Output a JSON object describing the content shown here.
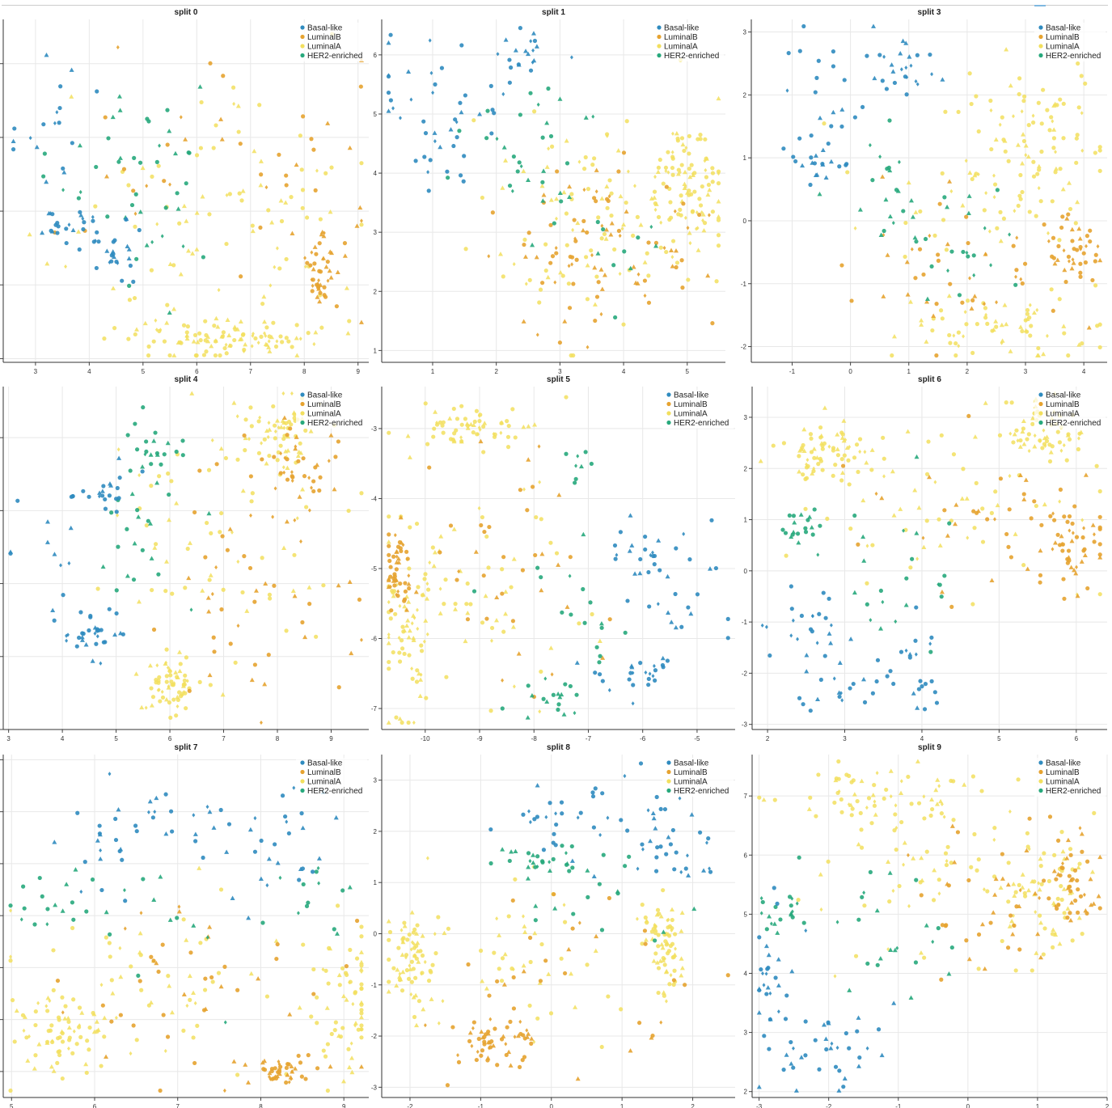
{
  "legend_entries": [
    "Basal-like",
    "LuminalB",
    "LuminalA",
    "HER2-enriched"
  ],
  "colors": {
    "Basal-like": "#2f8bbf",
    "LuminalB": "#e6a330",
    "LuminalA": "#f2df5e",
    "HER2-enriched": "#27a97c"
  },
  "chart_data": [
    {
      "type": "scatter",
      "title": "split 0",
      "xlim": [
        2.4,
        9.2
      ],
      "ylim": [
        0.95,
        5.6
      ],
      "xticks": [
        3,
        4,
        5,
        6,
        7,
        8,
        9
      ],
      "yticks": [
        1,
        2,
        3,
        4,
        5
      ],
      "legend": "top-right",
      "clusters": {
        "Basal-like": [
          [
            3.3,
            4.2
          ],
          [
            0.5,
            0.45
          ],
          [
            3.5,
            2.85
          ],
          [
            0.25,
            0.1
          ],
          [
            4.4,
            2.5
          ],
          [
            0.3,
            0.25
          ]
        ],
        "HER2-enriched": [
          [
            4.5,
            3.7
          ],
          [
            0.6,
            0.6
          ],
          [
            5.3,
            3.2
          ],
          [
            0.7,
            0.9
          ]
        ],
        "LuminalA": [
          [
            6.3,
            2.8
          ],
          [
            1.5,
            0.9
          ],
          [
            6.6,
            1.3
          ],
          [
            0.8,
            0.12
          ]
        ],
        "LuminalB": [
          [
            6.8,
            3.5
          ],
          [
            1.5,
            0.9
          ],
          [
            8.3,
            2.1
          ],
          [
            0.15,
            0.3
          ]
        ]
      }
    },
    {
      "type": "scatter",
      "title": "split 1",
      "xlim": [
        0.2,
        5.6
      ],
      "ylim": [
        0.8,
        6.6
      ],
      "xticks": [
        1,
        2,
        3,
        4,
        5
      ],
      "yticks": [
        1,
        2,
        3,
        4,
        5,
        6
      ],
      "legend": "top-right",
      "clusters": {
        "Basal-like": [
          [
            1.0,
            5.4
          ],
          [
            0.6,
            0.4
          ],
          [
            1.3,
            4.3
          ],
          [
            0.3,
            0.3
          ],
          [
            2.3,
            6.1
          ],
          [
            0.3,
            0.2
          ]
        ],
        "HER2-enriched": [
          [
            2.5,
            4.4
          ],
          [
            0.7,
            0.6
          ],
          [
            3.3,
            3.0
          ],
          [
            0.6,
            0.5
          ]
        ],
        "LuminalA": [
          [
            3.8,
            3.2
          ],
          [
            1.0,
            0.9
          ],
          [
            5.0,
            3.8
          ],
          [
            0.3,
            0.6
          ]
        ],
        "LuminalB": [
          [
            3.4,
            2.4
          ],
          [
            0.9,
            0.7
          ],
          [
            4.0,
            3.0
          ],
          [
            0.8,
            0.6
          ]
        ]
      }
    },
    {
      "type": "scatter",
      "title": "split 3",
      "xlim": [
        -1.7,
        4.4
      ],
      "ylim": [
        -2.25,
        3.2
      ],
      "xticks": [
        -1,
        0,
        1,
        2,
        3,
        4
      ],
      "yticks": [
        -2,
        -1,
        0,
        1,
        2,
        3
      ],
      "legend": "top-right",
      "clusters": {
        "Basal-like": [
          [
            -0.5,
            2.1
          ],
          [
            0.5,
            0.4
          ],
          [
            -0.6,
            0.9
          ],
          [
            0.3,
            0.2
          ],
          [
            0.8,
            2.4
          ],
          [
            0.3,
            0.3
          ]
        ],
        "HER2-enriched": [
          [
            0.7,
            0.4
          ],
          [
            0.6,
            0.6
          ],
          [
            1.5,
            -0.5
          ],
          [
            0.6,
            0.5
          ]
        ],
        "LuminalA": [
          [
            2.5,
            0.5
          ],
          [
            1.0,
            0.9
          ],
          [
            3.2,
            1.5
          ],
          [
            0.5,
            0.5
          ],
          [
            2.5,
            -1.7
          ],
          [
            0.9,
            0.25
          ]
        ],
        "LuminalB": [
          [
            2.0,
            -0.6
          ],
          [
            1.1,
            0.5
          ],
          [
            3.8,
            -0.5
          ],
          [
            0.3,
            0.3
          ]
        ]
      }
    },
    {
      "type": "scatter",
      "title": "split 4",
      "xlim": [
        2.9,
        9.7
      ],
      "ylim": [
        4.0,
        8.7
      ],
      "xticks": [
        3,
        4,
        5,
        6,
        7,
        8,
        9
      ],
      "yticks": [
        4,
        5,
        6,
        7,
        8
      ],
      "legend": "top-right",
      "clusters": {
        "Basal-like": [
          [
            3.8,
            6.4
          ],
          [
            0.5,
            0.5
          ],
          [
            4.7,
            7.3
          ],
          [
            0.3,
            0.15
          ],
          [
            4.6,
            5.3
          ],
          [
            0.3,
            0.2
          ]
        ],
        "HER2-enriched": [
          [
            5.5,
            6.6
          ],
          [
            0.5,
            0.6
          ],
          [
            5.7,
            7.8
          ],
          [
            0.2,
            0.2
          ]
        ],
        "LuminalA": [
          [
            6.9,
            6.8
          ],
          [
            1.2,
            0.9
          ],
          [
            6.0,
            4.6
          ],
          [
            0.3,
            0.2
          ],
          [
            8.0,
            8.0
          ],
          [
            0.4,
            0.3
          ]
        ],
        "LuminalB": [
          [
            7.6,
            6.0
          ],
          [
            1.0,
            0.9
          ],
          [
            8.4,
            7.6
          ],
          [
            0.3,
            0.3
          ]
        ]
      }
    },
    {
      "type": "scatter",
      "title": "split 5",
      "xlim": [
        -10.8,
        -4.3
      ],
      "ylim": [
        -7.3,
        -2.4
      ],
      "xticks": [
        -10,
        -9,
        -8,
        -7,
        -6,
        -5
      ],
      "yticks": [
        -7,
        -6,
        -5,
        -4,
        -3
      ],
      "legend": "top-right",
      "clusters": {
        "Basal-like": [
          [
            -5.3,
            -5.6
          ],
          [
            0.4,
            0.4
          ],
          [
            -6.0,
            -6.5
          ],
          [
            0.5,
            0.15
          ],
          [
            -6.0,
            -4.8
          ],
          [
            0.3,
            0.2
          ]
        ],
        "HER2-enriched": [
          [
            -7.3,
            -5.5
          ],
          [
            0.6,
            0.5
          ],
          [
            -7.2,
            -3.5
          ],
          [
            0.2,
            0.15
          ],
          [
            -7.8,
            -6.9
          ],
          [
            0.3,
            0.15
          ]
        ],
        "LuminalA": [
          [
            -9.0,
            -5.0
          ],
          [
            1.1,
            1.0
          ],
          [
            -10.3,
            -5.8
          ],
          [
            0.25,
            0.7
          ],
          [
            -9.0,
            -3.0
          ],
          [
            0.5,
            0.15
          ]
        ],
        "LuminalB": [
          [
            -8.3,
            -4.8
          ],
          [
            0.9,
            0.8
          ],
          [
            -10.5,
            -5.0
          ],
          [
            0.15,
            0.3
          ]
        ]
      }
    },
    {
      "type": "scatter",
      "title": "split 6",
      "xlim": [
        1.8,
        6.4
      ],
      "ylim": [
        -3.1,
        3.6
      ],
      "xticks": [
        2,
        3,
        4,
        5,
        6
      ],
      "yticks": [
        -3,
        -2,
        -1,
        0,
        1,
        2,
        3
      ],
      "legend": "top-right",
      "clusters": {
        "Basal-like": [
          [
            3.0,
            -2.2
          ],
          [
            0.4,
            0.35
          ],
          [
            3.9,
            -1.9
          ],
          [
            0.2,
            0.4
          ],
          [
            2.5,
            -1.0
          ],
          [
            0.3,
            0.4
          ]
        ],
        "HER2-enriched": [
          [
            3.6,
            -0.1
          ],
          [
            0.5,
            0.7
          ],
          [
            2.4,
            0.8
          ],
          [
            0.15,
            0.3
          ]
        ],
        "LuminalA": [
          [
            4.4,
            1.3
          ],
          [
            1.0,
            0.8
          ],
          [
            2.7,
            2.3
          ],
          [
            0.3,
            0.3
          ],
          [
            5.6,
            2.8
          ],
          [
            0.3,
            0.3
          ]
        ],
        "LuminalB": [
          [
            5.0,
            0.8
          ],
          [
            0.8,
            0.8
          ],
          [
            5.9,
            0.5
          ],
          [
            0.2,
            0.5
          ]
        ]
      }
    },
    {
      "type": "scatter",
      "title": "split 7",
      "xlim": [
        4.9,
        9.3
      ],
      "ylim": [
        6.5,
        -0.1
      ],
      "xticks": [
        5,
        6,
        7,
        8,
        9
      ],
      "yticks": [
        0,
        1,
        2,
        3,
        4,
        5,
        6
      ],
      "legend": "top-right",
      "clusters": {
        "Basal-like": [
          [
            7.0,
            1.1
          ],
          [
            0.7,
            0.3
          ],
          [
            8.1,
            1.6
          ],
          [
            0.3,
            0.5
          ],
          [
            6.2,
            1.7
          ],
          [
            0.2,
            0.4
          ]
        ],
        "HER2-enriched": [
          [
            7.0,
            3.0
          ],
          [
            0.8,
            0.7
          ],
          [
            5.5,
            2.7
          ],
          [
            0.3,
            0.3
          ],
          [
            8.7,
            2.8
          ],
          [
            0.2,
            0.3
          ]
        ],
        "LuminalA": [
          [
            7.2,
            4.3
          ],
          [
            1.2,
            0.9
          ],
          [
            9.0,
            4.8
          ],
          [
            0.2,
            0.6
          ],
          [
            5.6,
            5.3
          ],
          [
            0.3,
            0.4
          ]
        ],
        "LuminalB": [
          [
            7.0,
            4.5
          ],
          [
            0.9,
            1.0
          ],
          [
            8.3,
            6.0
          ],
          [
            0.3,
            0.15
          ]
        ]
      }
    },
    {
      "type": "scatter",
      "title": "split 8",
      "xlim": [
        -2.4,
        2.6
      ],
      "ylim": [
        -3.2,
        3.5
      ],
      "xticks": [
        -2,
        -1,
        0,
        1,
        2
      ],
      "yticks": [
        -3,
        -2,
        -1,
        0,
        1,
        2,
        3
      ],
      "legend": "top-right",
      "clusters": {
        "Basal-like": [
          [
            1.5,
            2.6
          ],
          [
            0.5,
            0.5
          ],
          [
            0.3,
            2.2
          ],
          [
            0.4,
            0.4
          ],
          [
            1.8,
            1.5
          ],
          [
            0.3,
            0.3
          ]
        ],
        "HER2-enriched": [
          [
            0.6,
            0.6
          ],
          [
            0.5,
            0.6
          ],
          [
            -0.3,
            1.4
          ],
          [
            0.3,
            0.2
          ]
        ],
        "LuminalA": [
          [
            -0.4,
            -0.3
          ],
          [
            1.0,
            0.9
          ],
          [
            -2.0,
            -0.6
          ],
          [
            0.15,
            0.5
          ],
          [
            1.6,
            -0.2
          ],
          [
            0.15,
            0.4
          ]
        ],
        "LuminalB": [
          [
            0.0,
            -1.0
          ],
          [
            0.9,
            0.8
          ],
          [
            -0.8,
            -2.1
          ],
          [
            0.3,
            0.3
          ]
        ]
      }
    },
    {
      "type": "scatter",
      "title": "split 9",
      "xlim": [
        -3.1,
        2.0
      ],
      "ylim": [
        1.9,
        7.7
      ],
      "xticks": [
        -3,
        -2,
        -1,
        0,
        1,
        2
      ],
      "yticks": [
        2,
        3,
        4,
        5,
        6,
        7
      ],
      "legend": "top-right",
      "clusters": {
        "Basal-like": [
          [
            -1.9,
            2.7
          ],
          [
            0.4,
            0.4
          ],
          [
            -2.8,
            3.8
          ],
          [
            0.15,
            0.6
          ]
        ],
        "HER2-enriched": [
          [
            -1.0,
            4.8
          ],
          [
            0.6,
            0.6
          ],
          [
            -2.6,
            5.2
          ],
          [
            0.2,
            0.3
          ]
        ],
        "LuminalA": [
          [
            -0.3,
            5.8
          ],
          [
            1.0,
            0.8
          ],
          [
            -1.4,
            7.0
          ],
          [
            0.6,
            0.3
          ],
          [
            1.2,
            5.4
          ],
          [
            0.3,
            0.6
          ]
        ],
        "LuminalB": [
          [
            0.4,
            5.2
          ],
          [
            0.7,
            0.8
          ],
          [
            1.5,
            5.5
          ],
          [
            0.2,
            0.5
          ]
        ]
      }
    }
  ]
}
